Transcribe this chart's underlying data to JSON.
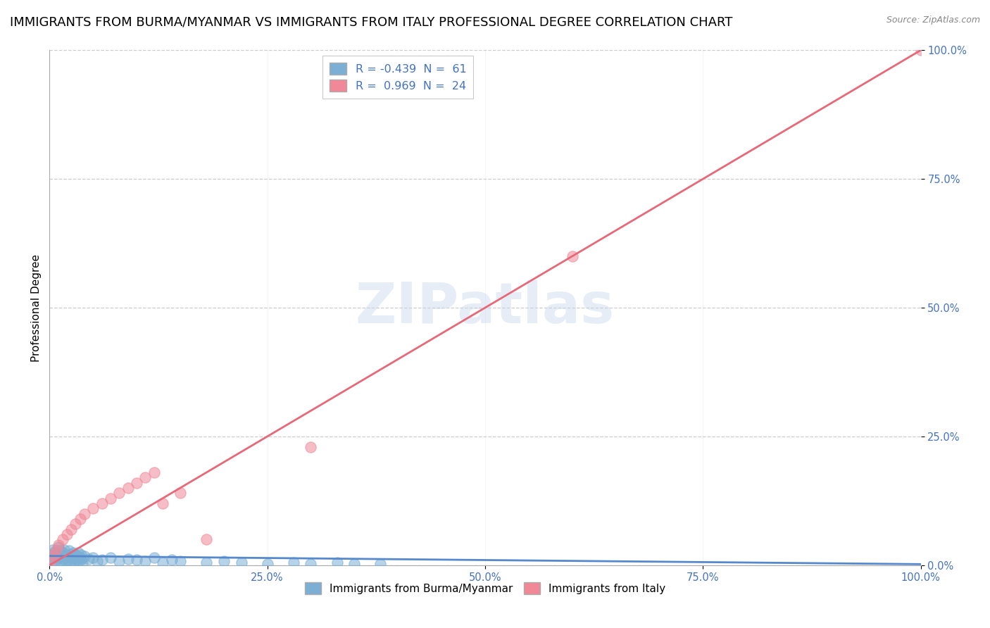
{
  "title": "IMMIGRANTS FROM BURMA/MYANMAR VS IMMIGRANTS FROM ITALY PROFESSIONAL DEGREE CORRELATION CHART",
  "source": "Source: ZipAtlas.com",
  "ylabel": "Professional Degree",
  "watermark": "ZIPatlas",
  "legend_entries": [
    {
      "label": "R = -0.439  N =  61",
      "color": "#a8c8e8"
    },
    {
      "label": "R =  0.969  N =  24",
      "color": "#f4aabb"
    }
  ],
  "blue_scatter_x": [
    0.1,
    0.2,
    0.3,
    0.4,
    0.5,
    0.6,
    0.7,
    0.8,
    0.9,
    1.0,
    1.1,
    1.2,
    1.3,
    1.4,
    1.5,
    1.6,
    1.7,
    1.8,
    1.9,
    2.0,
    2.1,
    2.2,
    2.3,
    2.4,
    2.5,
    2.6,
    2.7,
    2.8,
    2.9,
    3.0,
    3.1,
    3.2,
    3.3,
    3.4,
    3.5,
    3.6,
    3.7,
    3.8,
    4.0,
    4.5,
    5.0,
    5.5,
    6.0,
    7.0,
    8.0,
    9.0,
    10.0,
    11.0,
    12.0,
    13.0,
    14.0,
    15.0,
    18.0,
    20.0,
    22.0,
    25.0,
    28.0,
    30.0,
    33.0,
    35.0,
    38.0
  ],
  "blue_scatter_y": [
    1.5,
    2.0,
    1.0,
    3.0,
    2.5,
    1.8,
    0.8,
    2.2,
    1.2,
    3.5,
    1.5,
    2.8,
    0.5,
    1.8,
    2.5,
    1.2,
    3.0,
    0.8,
    2.0,
    1.5,
    1.0,
    2.8,
    1.8,
    0.5,
    2.2,
    1.2,
    2.5,
    0.8,
    1.5,
    2.0,
    1.0,
    1.8,
    2.5,
    0.8,
    1.5,
    2.0,
    1.2,
    0.5,
    1.8,
    1.2,
    1.5,
    0.8,
    1.0,
    1.5,
    0.8,
    1.2,
    1.0,
    0.8,
    1.5,
    0.5,
    1.0,
    0.8,
    0.5,
    0.8,
    0.5,
    0.3,
    0.5,
    0.3,
    0.5,
    0.3,
    0.2
  ],
  "pink_scatter_x": [
    0.2,
    0.5,
    0.8,
    1.0,
    1.5,
    2.0,
    2.5,
    3.0,
    3.5,
    4.0,
    5.0,
    6.0,
    7.0,
    8.0,
    9.0,
    10.0,
    11.0,
    12.0,
    13.0,
    15.0,
    18.0,
    30.0,
    60.0,
    100.0
  ],
  "pink_scatter_y": [
    1.0,
    2.0,
    3.0,
    4.0,
    5.0,
    6.0,
    7.0,
    8.0,
    9.0,
    10.0,
    11.0,
    12.0,
    13.0,
    14.0,
    15.0,
    16.0,
    17.0,
    18.0,
    12.0,
    14.0,
    5.0,
    23.0,
    60.0,
    100.0
  ],
  "blue_line_x": [
    0.0,
    100.0
  ],
  "blue_line_y": [
    1.8,
    0.2
  ],
  "pink_line_x": [
    0.0,
    100.0
  ],
  "pink_line_y": [
    0.0,
    100.0
  ],
  "x_ticks": [
    0.0,
    25.0,
    50.0,
    75.0,
    100.0
  ],
  "y_ticks": [
    0.0,
    25.0,
    50.0,
    75.0,
    100.0
  ],
  "xlim": [
    0.0,
    100.0
  ],
  "ylim": [
    0.0,
    100.0
  ],
  "bg_color": "#ffffff",
  "grid_color": "#cccccc",
  "blue_color": "#7bafd4",
  "pink_color": "#f08898",
  "blue_line_color": "#5588cc",
  "pink_line_color": "#e86878",
  "scatter_alpha": 0.55,
  "scatter_size": 120,
  "title_fontsize": 13,
  "axis_label_fontsize": 11,
  "tick_fontsize": 10.5,
  "legend_fontsize": 11.5
}
